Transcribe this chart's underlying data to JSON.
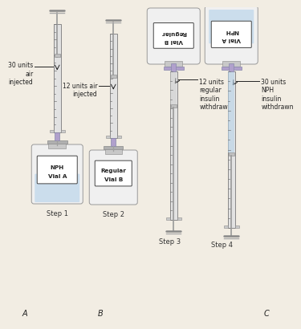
{
  "bg_color": "#f2ede3",
  "nph_color": "#b8d4ea",
  "regular_color": "#e8e8e8",
  "barrel_color": "#e2e2e2",
  "barrel_edge": "#888888",
  "plunger_color": "#cccccc",
  "hub_color": "#b0a0cc",
  "hub_edge": "#8888aa",
  "needle_color": "#a0a0a0",
  "tick_color": "#777777",
  "vial_body_color": "#f0f0f0",
  "vial_neck_color": "#c8c8c8",
  "vial_cap_color": "#b0b0b0",
  "line_color": "#222222",
  "text_color": "#222222",
  "step_color": "#333333",
  "annotation1": "30 units\nair\ninjected",
  "annotation2": "12 units air\ninjected",
  "annotation3": "12 units\nregular\ninsulin\nwithdrawn",
  "annotation4": "30 units\nNPH\ninsulin\nwithdrawn",
  "vial_A_line1": "NPH",
  "vial_A_line2": "Vial A",
  "vial_B_line1": "Regular",
  "vial_B_line2": "Vial B"
}
